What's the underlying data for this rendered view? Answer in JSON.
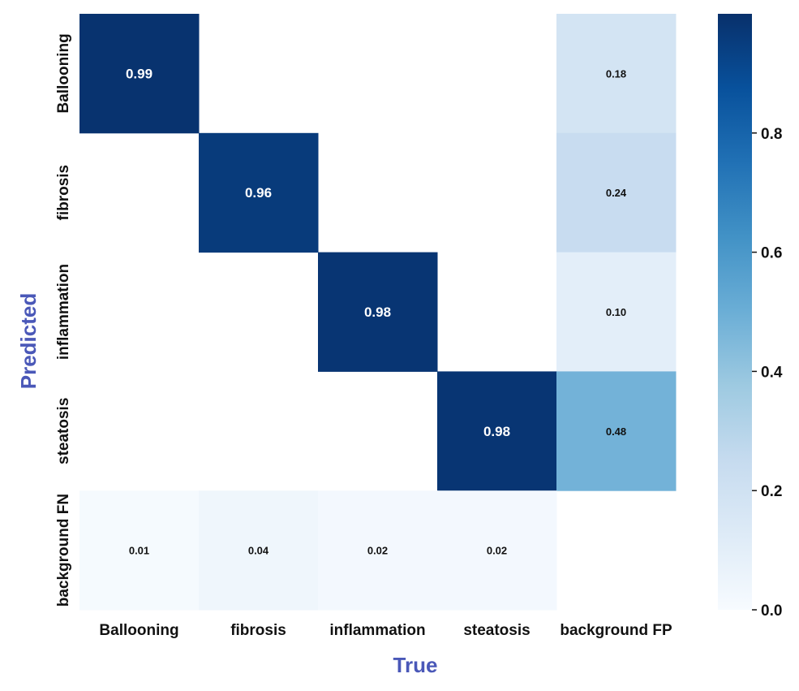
{
  "chart_data": {
    "type": "heatmap",
    "title": "",
    "xlabel": "True",
    "ylabel": "Predicted",
    "x_categories": [
      "Ballooning",
      "fibrosis",
      "inflammation",
      "steatosis",
      "background FP"
    ],
    "y_categories": [
      "Ballooning",
      "fibrosis",
      "inflammation",
      "steatosis",
      "background FN"
    ],
    "matrix": [
      [
        0.99,
        null,
        null,
        null,
        0.18
      ],
      [
        null,
        0.96,
        null,
        null,
        0.24
      ],
      [
        null,
        null,
        0.98,
        null,
        0.1
      ],
      [
        null,
        null,
        null,
        0.98,
        0.48
      ],
      [
        0.01,
        0.04,
        0.02,
        0.02,
        null
      ]
    ],
    "cell_labels": [
      [
        "0.99",
        "",
        "",
        "",
        "0.18"
      ],
      [
        "",
        "0.96",
        "",
        "",
        "0.24"
      ],
      [
        "",
        "",
        "0.98",
        "",
        "0.10"
      ],
      [
        "",
        "",
        "",
        "0.98",
        "0.48"
      ],
      [
        "0.01",
        "0.04",
        "0.02",
        "0.02",
        ""
      ]
    ],
    "colorbar": {
      "min": 0.0,
      "max": 1.0,
      "ticks": [
        0.0,
        0.2,
        0.4,
        0.6,
        0.8
      ],
      "tick_labels": [
        "0.0",
        "0.2",
        "0.4",
        "0.6",
        "0.8"
      ],
      "colormap": "Blues"
    },
    "colors": {
      "axis_title": "#4a58b8",
      "tick_text": "#111111",
      "light_text": "#ffffff",
      "dark_text": "#111111"
    }
  }
}
